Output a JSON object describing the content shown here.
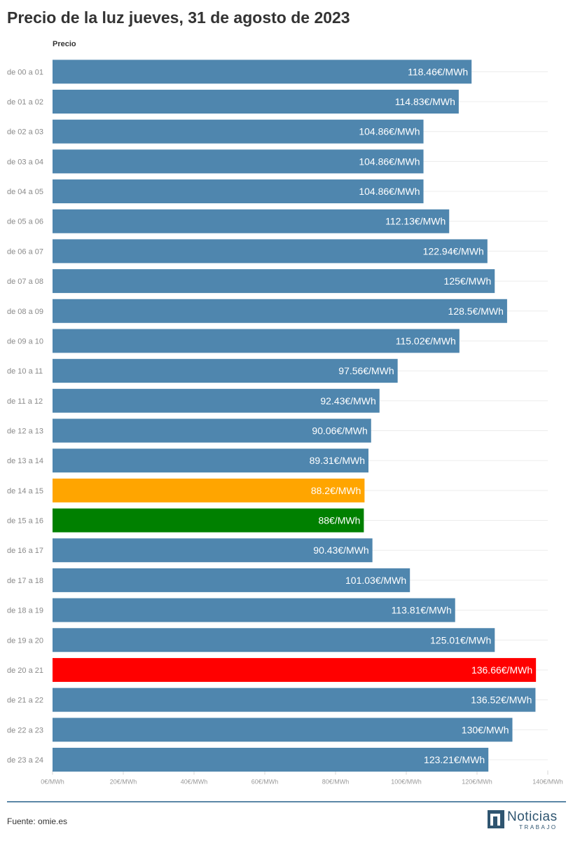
{
  "title": "Precio de la luz jueves, 31 de agosto de 2023",
  "chart_data": {
    "type": "bar",
    "orientation": "horizontal",
    "title": "Precio de la luz jueves, 31 de agosto de 2023",
    "series_header": "Precio",
    "categories": [
      "de 00 a 01",
      "de 01 a 02",
      "de 02 a 03",
      "de 03 a 04",
      "de 04 a 05",
      "de 05 a 06",
      "de 06 a 07",
      "de 07 a 08",
      "de 08 a 09",
      "de 09 a 10",
      "de 10 a 11",
      "de 11 a 12",
      "de 12 a 13",
      "de 13 a 14",
      "de 14 a 15",
      "de 15 a 16",
      "de 16 a 17",
      "de 17 a 18",
      "de 18 a 19",
      "de 19 a 20",
      "de 20 a 21",
      "de 21 a 22",
      "de 22 a 23",
      "de 23 a 24"
    ],
    "values": [
      118.46,
      114.83,
      104.86,
      104.86,
      104.86,
      112.13,
      122.94,
      125,
      128.5,
      115.02,
      97.56,
      92.43,
      90.06,
      89.31,
      88.2,
      88,
      90.43,
      101.03,
      113.81,
      125.01,
      136.66,
      136.52,
      130,
      123.21
    ],
    "value_labels": [
      "118.46€/MWh",
      "114.83€/MWh",
      "104.86€/MWh",
      "104.86€/MWh",
      "104.86€/MWh",
      "112.13€/MWh",
      "122.94€/MWh",
      "125€/MWh",
      "128.5€/MWh",
      "115.02€/MWh",
      "97.56€/MWh",
      "92.43€/MWh",
      "90.06€/MWh",
      "89.31€/MWh",
      "88.2€/MWh",
      "88€/MWh",
      "90.43€/MWh",
      "101.03€/MWh",
      "113.81€/MWh",
      "125.01€/MWh",
      "136.66€/MWh",
      "136.52€/MWh",
      "130€/MWh",
      "123.21€/MWh"
    ],
    "bar_colors": [
      "#4f86ae",
      "#4f86ae",
      "#4f86ae",
      "#4f86ae",
      "#4f86ae",
      "#4f86ae",
      "#4f86ae",
      "#4f86ae",
      "#4f86ae",
      "#4f86ae",
      "#4f86ae",
      "#4f86ae",
      "#4f86ae",
      "#4f86ae",
      "#ffa500",
      "#008000",
      "#4f86ae",
      "#4f86ae",
      "#4f86ae",
      "#4f86ae",
      "#ff0000",
      "#4f86ae",
      "#4f86ae",
      "#4f86ae"
    ],
    "xlim": [
      0,
      140
    ],
    "xticks": [
      0,
      20,
      40,
      60,
      80,
      100,
      120,
      140
    ],
    "xtick_labels": [
      "0€/MWh",
      "20€/MWh",
      "40€/MWh",
      "60€/MWh",
      "80€/MWh",
      "100€/MWh",
      "120€/MWh",
      "140€/MWh"
    ],
    "grid": true,
    "legend": "none"
  },
  "footer": {
    "source": "Fuente: omie.es",
    "logo_main": "Noticias",
    "logo_sub": "TRABAJO"
  },
  "colors": {
    "bar_default": "#4f86ae",
    "highlight_orange": "#ffa500",
    "highlight_green": "#008000",
    "highlight_red": "#ff0000",
    "brand": "#2f5570"
  }
}
